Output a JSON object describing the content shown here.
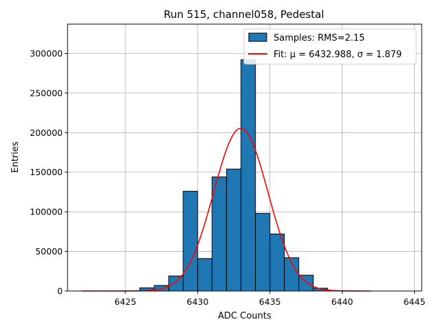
{
  "chart_data": {
    "type": "bar",
    "title": "Run 515, channel058, Pedestal",
    "xlabel": "ADC Counts",
    "ylabel": "Entries",
    "xlim": [
      6421,
      6445.5
    ],
    "ylim": [
      0,
      337000
    ],
    "grid": true,
    "legend_placement": "top-right",
    "x_ticks": [
      6425,
      6430,
      6435,
      6440,
      6445
    ],
    "x_tick_labels": [
      "6425",
      "6430",
      "6435",
      "6440",
      "6445"
    ],
    "y_ticks": [
      0,
      50000,
      100000,
      150000,
      200000,
      250000,
      300000
    ],
    "y_tick_labels": [
      "0",
      "50000",
      "100000",
      "150000",
      "200000",
      "250000",
      "300000"
    ],
    "bin_width": 1,
    "series": [
      {
        "name": "Samples: RMS=2.15",
        "type": "histogram",
        "color": "#1f77b4",
        "edge_color": "#000000",
        "bin_starts": [
          6426,
          6427,
          6428,
          6429,
          6430,
          6431,
          6432,
          6433,
          6434,
          6435,
          6436,
          6437,
          6438,
          6439
        ],
        "values": [
          4000,
          7000,
          19000,
          126000,
          41000,
          144000,
          154000,
          292000,
          98000,
          72000,
          42000,
          20000,
          3500,
          500
        ]
      },
      {
        "name": "Fit: μ = 6432.988, σ = 1.879",
        "type": "line",
        "color": "#ff0000",
        "mu": 6432.988,
        "sigma": 1.879,
        "amplitude": 205500,
        "x_range": [
          6422,
          6442
        ]
      }
    ]
  }
}
